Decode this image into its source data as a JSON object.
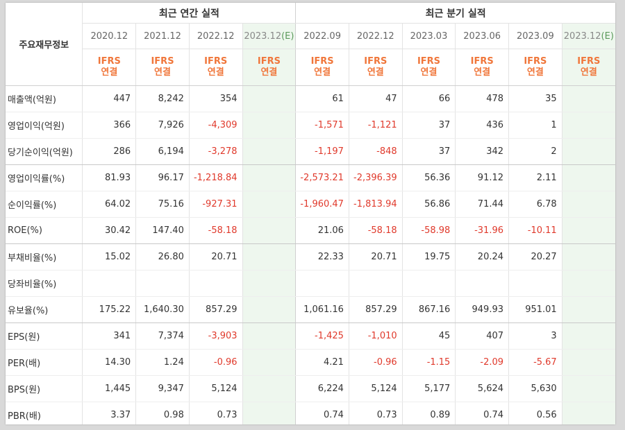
{
  "table": {
    "corner_label": "주요재무정보",
    "group_annual": "최근 연간 실적",
    "group_quarterly": "최근 분기 실적",
    "annual_periods": [
      "2020.12",
      "2021.12",
      "2022.12",
      "2023.12"
    ],
    "annual_est_tag": "(E)",
    "quarter_periods": [
      "2022.09",
      "2022.12",
      "2023.03",
      "2023.06",
      "2023.09",
      "2023.12"
    ],
    "quarter_est_tag": "(E)",
    "ifrs_line1": "IFRS",
    "ifrs_line2": "연결",
    "rows": [
      {
        "label": "매출액(억원)",
        "annual": [
          "447",
          "8,242",
          "354",
          ""
        ],
        "quarterly": [
          "61",
          "47",
          "66",
          "478",
          "35",
          ""
        ]
      },
      {
        "label": "영업이익(억원)",
        "annual": [
          "366",
          "7,926",
          "-4,309",
          ""
        ],
        "quarterly": [
          "-1,571",
          "-1,121",
          "37",
          "436",
          "1",
          ""
        ]
      },
      {
        "label": "당기순이익(억원)",
        "annual": [
          "286",
          "6,194",
          "-3,278",
          ""
        ],
        "quarterly": [
          "-1,197",
          "-848",
          "37",
          "342",
          "2",
          ""
        ]
      },
      {
        "label": "영업이익률(%)",
        "annual": [
          "81.93",
          "96.17",
          "-1,218.84",
          ""
        ],
        "quarterly": [
          "-2,573.21",
          "-2,396.39",
          "56.36",
          "91.12",
          "2.11",
          ""
        ]
      },
      {
        "label": "순이익률(%)",
        "annual": [
          "64.02",
          "75.16",
          "-927.31",
          ""
        ],
        "quarterly": [
          "-1,960.47",
          "-1,813.94",
          "56.86",
          "71.44",
          "6.78",
          ""
        ]
      },
      {
        "label": "ROE(%)",
        "annual": [
          "30.42",
          "147.40",
          "-58.18",
          ""
        ],
        "quarterly": [
          "21.06",
          "-58.18",
          "-58.98",
          "-31.96",
          "-10.11",
          ""
        ]
      },
      {
        "label": "부채비율(%)",
        "annual": [
          "15.02",
          "26.80",
          "20.71",
          ""
        ],
        "quarterly": [
          "22.33",
          "20.71",
          "19.75",
          "20.24",
          "20.27",
          ""
        ]
      },
      {
        "label": "당좌비율(%)",
        "annual": [
          "",
          "",
          "",
          ""
        ],
        "quarterly": [
          "",
          "",
          "",
          "",
          "",
          ""
        ]
      },
      {
        "label": "유보율(%)",
        "annual": [
          "175.22",
          "1,640.30",
          "857.29",
          ""
        ],
        "quarterly": [
          "1,061.16",
          "857.29",
          "867.16",
          "949.93",
          "951.01",
          ""
        ]
      },
      {
        "label": "EPS(원)",
        "annual": [
          "341",
          "7,374",
          "-3,903",
          ""
        ],
        "quarterly": [
          "-1,425",
          "-1,010",
          "45",
          "407",
          "3",
          ""
        ]
      },
      {
        "label": "PER(배)",
        "annual": [
          "14.30",
          "1.24",
          "-0.96",
          ""
        ],
        "quarterly": [
          "4.21",
          "-0.96",
          "-1.15",
          "-2.09",
          "-5.67",
          ""
        ]
      },
      {
        "label": "BPS(원)",
        "annual": [
          "1,445",
          "9,347",
          "5,124",
          ""
        ],
        "quarterly": [
          "6,224",
          "5,124",
          "5,177",
          "5,624",
          "5,630",
          ""
        ]
      },
      {
        "label": "PBR(배)",
        "annual": [
          "3.37",
          "0.98",
          "0.73",
          ""
        ],
        "quarterly": [
          "0.74",
          "0.73",
          "0.89",
          "0.74",
          "0.56",
          ""
        ]
      }
    ]
  },
  "colors": {
    "negative": "#e0392b",
    "ifrs": "#f0763a",
    "estimate_bg": "#eef7ee"
  }
}
